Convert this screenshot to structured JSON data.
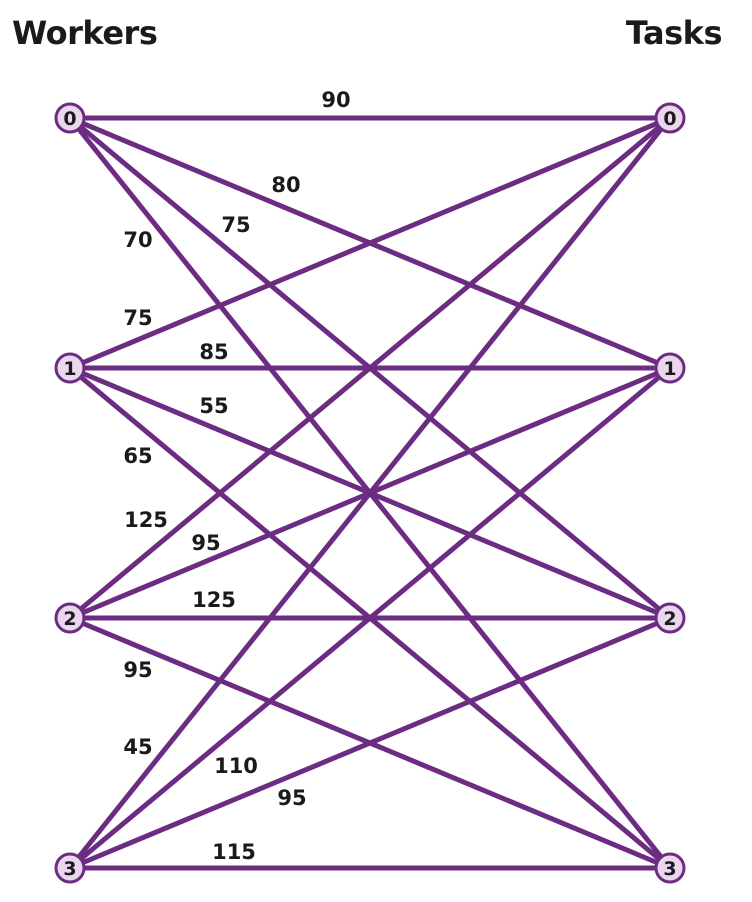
{
  "headings": {
    "left": "Workers",
    "right": "Tasks"
  },
  "colors": {
    "edge": "#6b2c82",
    "node_fill": "#ead7ee",
    "node_stroke": "#6b2c82",
    "text": "#1a1a1a"
  },
  "workers": [
    "0",
    "1",
    "2",
    "3"
  ],
  "tasks": [
    "0",
    "1",
    "2",
    "3"
  ],
  "edges": [
    {
      "worker": 0,
      "task": 0,
      "cost": "90"
    },
    {
      "worker": 0,
      "task": 1,
      "cost": "80"
    },
    {
      "worker": 0,
      "task": 2,
      "cost": "75"
    },
    {
      "worker": 0,
      "task": 3,
      "cost": "70"
    },
    {
      "worker": 1,
      "task": 0,
      "cost": "75"
    },
    {
      "worker": 1,
      "task": 1,
      "cost": "85"
    },
    {
      "worker": 1,
      "task": 2,
      "cost": "55"
    },
    {
      "worker": 1,
      "task": 3,
      "cost": "65"
    },
    {
      "worker": 2,
      "task": 0,
      "cost": "125"
    },
    {
      "worker": 2,
      "task": 1,
      "cost": "95"
    },
    {
      "worker": 2,
      "task": 2,
      "cost": "125"
    },
    {
      "worker": 2,
      "task": 3,
      "cost": "95"
    },
    {
      "worker": 3,
      "task": 0,
      "cost": "45"
    },
    {
      "worker": 3,
      "task": 1,
      "cost": "110"
    },
    {
      "worker": 3,
      "task": 2,
      "cost": "95"
    },
    {
      "worker": 3,
      "task": 3,
      "cost": "115"
    }
  ]
}
